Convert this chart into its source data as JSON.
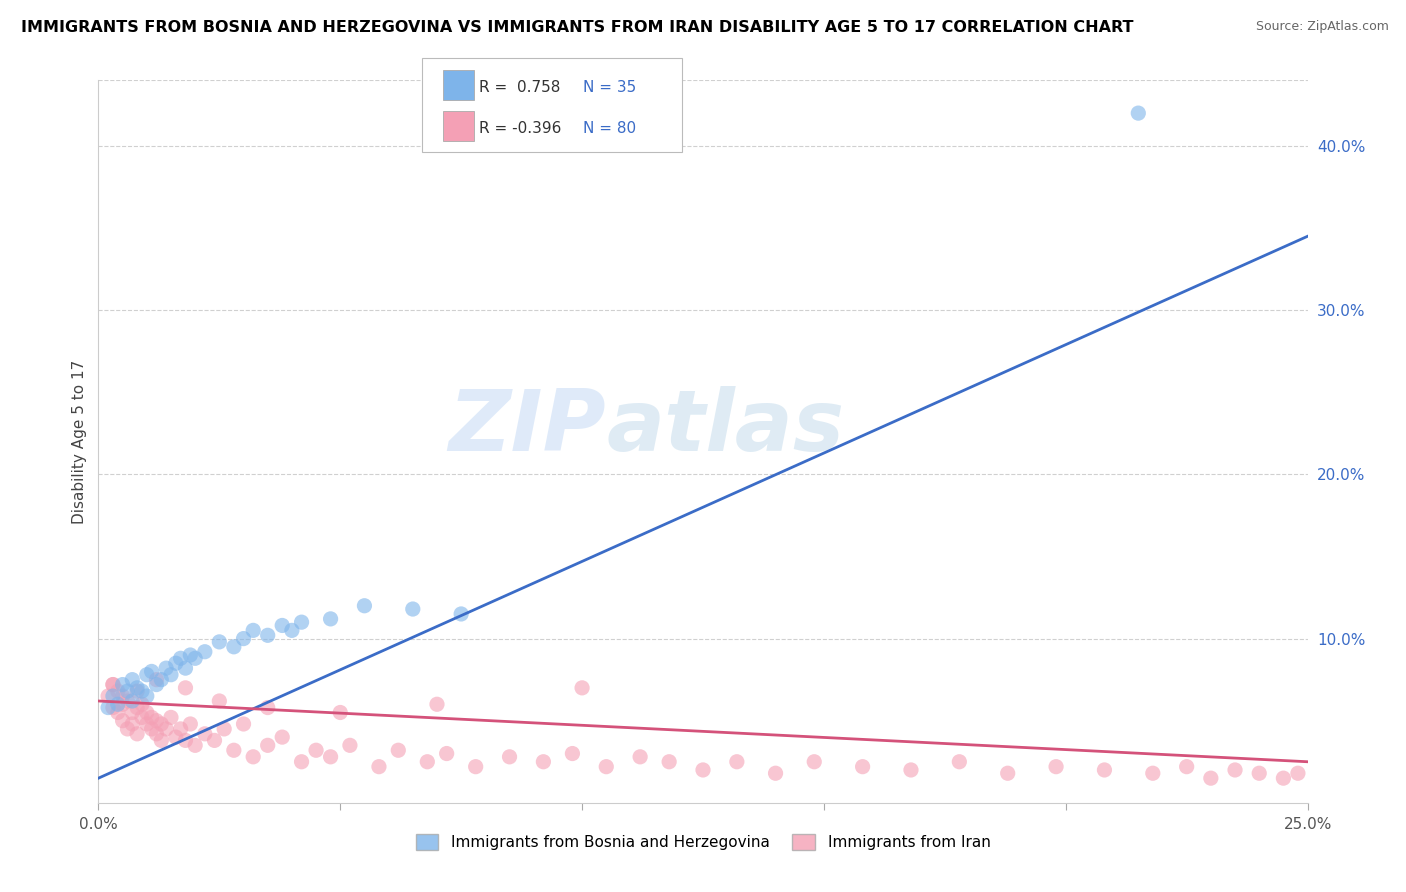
{
  "title": "IMMIGRANTS FROM BOSNIA AND HERZEGOVINA VS IMMIGRANTS FROM IRAN DISABILITY AGE 5 TO 17 CORRELATION CHART",
  "source": "Source: ZipAtlas.com",
  "ylabel": "Disability Age 5 to 17",
  "xlim": [
    0.0,
    0.25
  ],
  "ylim": [
    0.0,
    0.44
  ],
  "right_yticks": [
    0.0,
    0.1,
    0.2,
    0.3,
    0.4
  ],
  "right_yticklabels": [
    "",
    "10.0%",
    "20.0%",
    "30.0%",
    "40.0%"
  ],
  "xticks": [
    0.0,
    0.05,
    0.1,
    0.15,
    0.2,
    0.25
  ],
  "xticklabels": [
    "0.0%",
    "",
    "",
    "",
    "",
    "25.0%"
  ],
  "watermark_zip": "ZIP",
  "watermark_atlas": "atlas",
  "legend_blue_R": "R =  0.758",
  "legend_blue_N": "N = 35",
  "legend_pink_R": "R = -0.396",
  "legend_pink_N": "N = 80",
  "blue_scatter_color": "#7EB4EA",
  "pink_scatter_color": "#F4A0B5",
  "blue_line_color": "#3B6CC7",
  "pink_line_color": "#D4527A",
  "scatter_size": 120,
  "scatter_alpha": 0.6,
  "bosnia_x": [
    0.002,
    0.003,
    0.004,
    0.005,
    0.006,
    0.007,
    0.007,
    0.008,
    0.009,
    0.01,
    0.01,
    0.011,
    0.012,
    0.013,
    0.014,
    0.015,
    0.016,
    0.017,
    0.018,
    0.019,
    0.02,
    0.022,
    0.025,
    0.028,
    0.03,
    0.032,
    0.035,
    0.038,
    0.04,
    0.042,
    0.048,
    0.055,
    0.065,
    0.075,
    0.215
  ],
  "bosnia_y": [
    0.058,
    0.065,
    0.06,
    0.072,
    0.068,
    0.075,
    0.062,
    0.07,
    0.068,
    0.078,
    0.065,
    0.08,
    0.072,
    0.075,
    0.082,
    0.078,
    0.085,
    0.088,
    0.082,
    0.09,
    0.088,
    0.092,
    0.098,
    0.095,
    0.1,
    0.105,
    0.102,
    0.108,
    0.105,
    0.11,
    0.112,
    0.12,
    0.118,
    0.115,
    0.42
  ],
  "iran_x": [
    0.002,
    0.003,
    0.003,
    0.004,
    0.004,
    0.005,
    0.005,
    0.006,
    0.006,
    0.007,
    0.007,
    0.008,
    0.008,
    0.009,
    0.009,
    0.01,
    0.01,
    0.011,
    0.011,
    0.012,
    0.012,
    0.013,
    0.013,
    0.014,
    0.015,
    0.016,
    0.017,
    0.018,
    0.019,
    0.02,
    0.022,
    0.024,
    0.026,
    0.028,
    0.03,
    0.032,
    0.035,
    0.038,
    0.042,
    0.045,
    0.048,
    0.052,
    0.058,
    0.062,
    0.068,
    0.072,
    0.078,
    0.085,
    0.092,
    0.098,
    0.105,
    0.112,
    0.118,
    0.125,
    0.132,
    0.14,
    0.148,
    0.158,
    0.168,
    0.178,
    0.188,
    0.198,
    0.208,
    0.218,
    0.225,
    0.23,
    0.235,
    0.24,
    0.245,
    0.248,
    0.003,
    0.005,
    0.008,
    0.012,
    0.018,
    0.025,
    0.035,
    0.05,
    0.07,
    0.1
  ],
  "iran_y": [
    0.065,
    0.058,
    0.072,
    0.055,
    0.068,
    0.06,
    0.05,
    0.062,
    0.045,
    0.055,
    0.048,
    0.058,
    0.042,
    0.052,
    0.06,
    0.048,
    0.055,
    0.045,
    0.052,
    0.042,
    0.05,
    0.048,
    0.038,
    0.045,
    0.052,
    0.04,
    0.045,
    0.038,
    0.048,
    0.035,
    0.042,
    0.038,
    0.045,
    0.032,
    0.048,
    0.028,
    0.035,
    0.04,
    0.025,
    0.032,
    0.028,
    0.035,
    0.022,
    0.032,
    0.025,
    0.03,
    0.022,
    0.028,
    0.025,
    0.03,
    0.022,
    0.028,
    0.025,
    0.02,
    0.025,
    0.018,
    0.025,
    0.022,
    0.02,
    0.025,
    0.018,
    0.022,
    0.02,
    0.018,
    0.022,
    0.015,
    0.02,
    0.018,
    0.015,
    0.018,
    0.072,
    0.065,
    0.068,
    0.075,
    0.07,
    0.062,
    0.058,
    0.055,
    0.06,
    0.07
  ]
}
